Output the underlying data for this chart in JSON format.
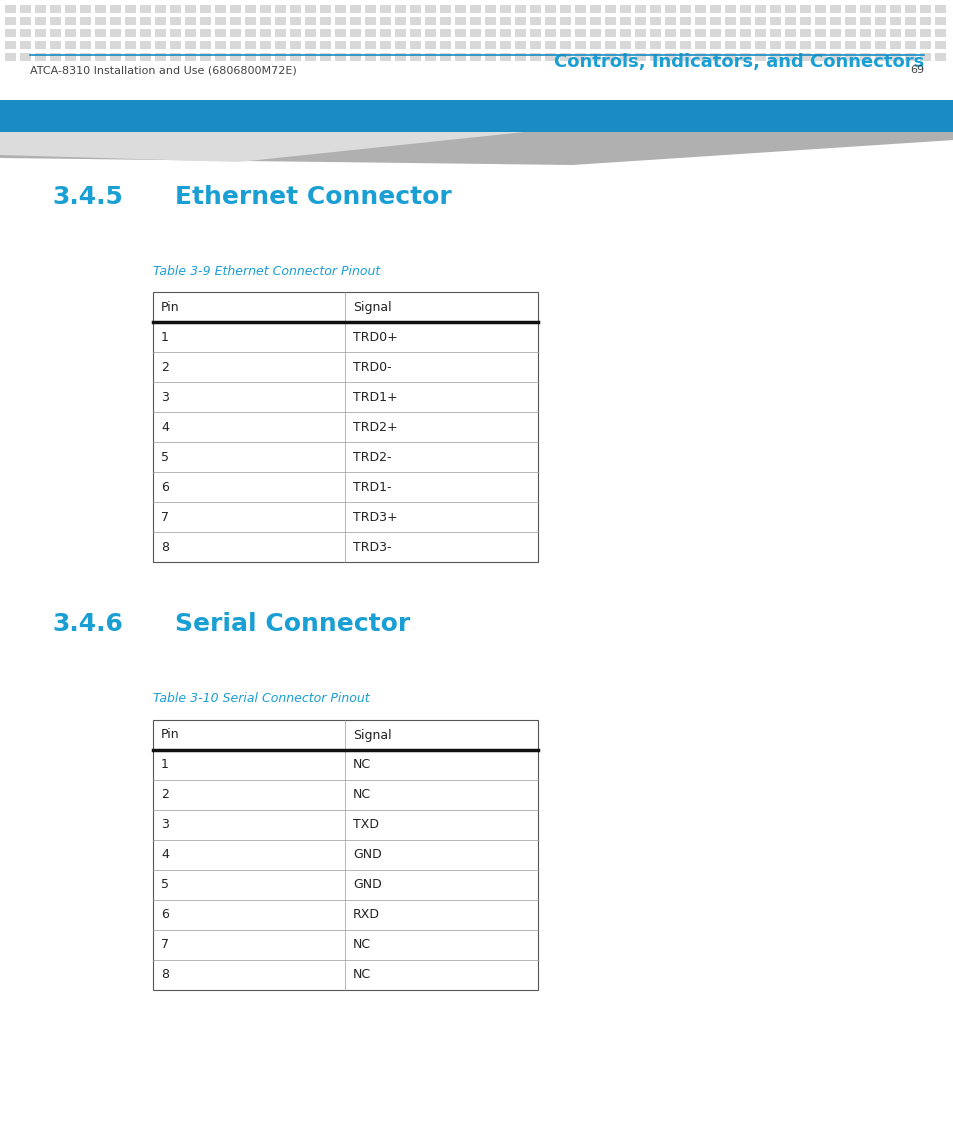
{
  "header_title": "Controls, Indicators, and Connectors",
  "header_title_color": "#1a9fd4",
  "header_bg_color": "#1a8bc4",
  "header_dot_color": "#d8d8d8",
  "section1_number": "3.4.5",
  "section1_title": "Ethernet Connector",
  "section1_color": "#1a9fd4",
  "table1_caption": "Table 3-9 Ethernet Connector Pinout",
  "table1_caption_color": "#1a9fd4",
  "table1_headers": [
    "Pin",
    "Signal"
  ],
  "table1_rows": [
    [
      "1",
      "TRD0+"
    ],
    [
      "2",
      "TRD0-"
    ],
    [
      "3",
      "TRD1+"
    ],
    [
      "4",
      "TRD2+"
    ],
    [
      "5",
      "TRD2-"
    ],
    [
      "6",
      "TRD1-"
    ],
    [
      "7",
      "TRD3+"
    ],
    [
      "8",
      "TRD3-"
    ]
  ],
  "section2_number": "3.4.6",
  "section2_title": "Serial Connector",
  "section2_color": "#1a9fd4",
  "table2_caption": "Table 3-10 Serial Connector Pinout",
  "table2_caption_color": "#1a9fd4",
  "table2_headers": [
    "Pin",
    "Signal"
  ],
  "table2_rows": [
    [
      "1",
      "NC"
    ],
    [
      "2",
      "NC"
    ],
    [
      "3",
      "TXD"
    ],
    [
      "4",
      "GND"
    ],
    [
      "5",
      "GND"
    ],
    [
      "6",
      "RXD"
    ],
    [
      "7",
      "NC"
    ],
    [
      "8",
      "NC"
    ]
  ],
  "footer_text": "ATCA-8310 Installation and Use (6806800M72E)",
  "footer_page": "69",
  "footer_color": "#444444",
  "bg_color": "#ffffff",
  "table_border_color": "#555555",
  "table_header_separator_color": "#111111",
  "table_text_color": "#222222"
}
